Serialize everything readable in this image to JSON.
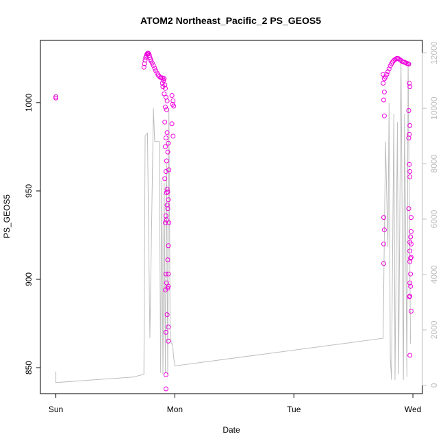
{
  "chart_data": {
    "type": "scatter",
    "title": "ATOM2 Northeast_Pacific_2 PS_GEOS5",
    "xlabel": "Date",
    "ylabel": "PS_GEOS5",
    "x_ticks": [
      {
        "label": "Sun",
        "value": 0
      },
      {
        "label": "Mon",
        "value": 1
      },
      {
        "label": "Tue",
        "value": 2
      },
      {
        "label": "Wed",
        "value": 3
      }
    ],
    "xlim": [
      -0.13,
      3.08
    ],
    "ylim_left": [
      835.3,
      1035.2
    ],
    "yticks_left": [
      850,
      900,
      950,
      1000
    ],
    "ylim_right": [
      -300,
      12450
    ],
    "yticks_right": [
      0,
      2000,
      4000,
      6000,
      8000,
      10000,
      12000
    ],
    "colors": {
      "points": "#ee00dd",
      "altitude_line": "#bdbdbd",
      "right_axis": "#bdbdbd",
      "axis": "#000000"
    },
    "series": [
      {
        "marker": "open-circle",
        "axis": "left",
        "points": [
          [
            0.0,
            1003.3
          ],
          [
            0.0,
            1002.6
          ],
          [
            0.74,
            1020.0
          ],
          [
            0.745,
            1022.0
          ],
          [
            0.75,
            1024.0
          ],
          [
            0.755,
            1025.5
          ],
          [
            0.76,
            1026.5
          ],
          [
            0.765,
            1027.3
          ],
          [
            0.77,
            1027.8
          ],
          [
            0.775,
            1028.0
          ],
          [
            0.78,
            1027.6
          ],
          [
            0.785,
            1026.8
          ],
          [
            0.79,
            1025.6
          ],
          [
            0.795,
            1024.5
          ],
          [
            0.8,
            1023.5
          ],
          [
            0.81,
            1022.3
          ],
          [
            0.82,
            1021.0
          ],
          [
            0.83,
            1019.5
          ],
          [
            0.84,
            1018.0
          ],
          [
            0.85,
            1016.7
          ],
          [
            0.86,
            1015.6
          ],
          [
            0.87,
            1014.8
          ],
          [
            0.88,
            1014.2
          ],
          [
            0.89,
            1014.0
          ],
          [
            0.9,
            1013.8
          ],
          [
            0.91,
            1013.6
          ],
          [
            0.905,
            1012.5
          ],
          [
            0.895,
            1011.0
          ],
          [
            0.915,
            1010.0
          ],
          [
            0.9,
            1009.0
          ],
          [
            0.92,
            1008.0
          ],
          [
            0.91,
            1005.0
          ],
          [
            0.925,
            1003.0
          ],
          [
            0.935,
            1001.0
          ],
          [
            0.92,
            997.5
          ],
          [
            0.93,
            996.0
          ],
          [
            0.915,
            989.0
          ],
          [
            0.935,
            983.0
          ],
          [
            0.925,
            980.0
          ],
          [
            0.945,
            977.0
          ],
          [
            0.92,
            975.0
          ],
          [
            0.94,
            972.0
          ],
          [
            0.93,
            967.0
          ],
          [
            0.925,
            961.0
          ],
          [
            0.95,
            962.0
          ],
          [
            0.915,
            957.0
          ],
          [
            0.935,
            951.0
          ],
          [
            0.93,
            949.0
          ],
          [
            0.94,
            949.5
          ],
          [
            0.945,
            945.0
          ],
          [
            0.935,
            942.0
          ],
          [
            0.94,
            940.0
          ],
          [
            0.925,
            936.0
          ],
          [
            0.92,
            932.0
          ],
          [
            0.93,
            933.5
          ],
          [
            0.95,
            932.0
          ],
          [
            0.945,
            919.0
          ],
          [
            0.94,
            911.0
          ],
          [
            0.925,
            903.0
          ],
          [
            0.945,
            903.0
          ],
          [
            0.93,
            898.0
          ],
          [
            0.94,
            895.0
          ],
          [
            0.945,
            896.0
          ],
          [
            0.92,
            894.0
          ],
          [
            0.935,
            880.0
          ],
          [
            0.945,
            873.0
          ],
          [
            0.925,
            870.0
          ],
          [
            0.945,
            865.0
          ],
          [
            0.925,
            846.0
          ],
          [
            0.925,
            838.0
          ],
          [
            0.975,
            1004.0
          ],
          [
            0.985,
            1001.0
          ],
          [
            0.98,
            999.0
          ],
          [
            0.99,
            998.0
          ],
          [
            0.975,
            988.0
          ],
          [
            0.985,
            981.0
          ],
          [
            2.75,
            1016.0
          ],
          [
            2.76,
            1013.5
          ],
          [
            2.77,
            1014.5
          ],
          [
            2.78,
            1016.0
          ],
          [
            2.79,
            1017.5
          ],
          [
            2.8,
            1019.0
          ],
          [
            2.81,
            1020.8
          ],
          [
            2.82,
            1022.0
          ],
          [
            2.83,
            1023.0
          ],
          [
            2.84,
            1023.8
          ],
          [
            2.85,
            1024.4
          ],
          [
            2.86,
            1024.8
          ],
          [
            2.87,
            1025.0
          ],
          [
            2.88,
            1024.8
          ],
          [
            2.89,
            1024.3
          ],
          [
            2.9,
            1023.8
          ],
          [
            2.91,
            1023.3
          ],
          [
            2.92,
            1023.0
          ],
          [
            2.93,
            1022.8
          ],
          [
            2.94,
            1022.5
          ],
          [
            2.95,
            1022.2
          ],
          [
            2.96,
            1022.0
          ],
          [
            2.965,
            1021.8
          ],
          [
            2.75,
            1011.0
          ],
          [
            2.76,
            1006.0
          ],
          [
            2.755,
            1001.5
          ],
          [
            2.76,
            992.5
          ],
          [
            2.755,
            935.0
          ],
          [
            2.76,
            928.0
          ],
          [
            2.755,
            920.0
          ],
          [
            2.755,
            909.0
          ],
          [
            2.97,
            1011.0
          ],
          [
            2.975,
            1009.0
          ],
          [
            2.965,
            995.5
          ],
          [
            2.975,
            987.0
          ],
          [
            2.97,
            982.0
          ],
          [
            2.965,
            980.0
          ],
          [
            2.97,
            965.0
          ],
          [
            2.975,
            961.0
          ],
          [
            2.975,
            958.0
          ],
          [
            2.965,
            940.0
          ],
          [
            2.985,
            935.0
          ],
          [
            2.985,
            927.0
          ],
          [
            2.98,
            924.0
          ],
          [
            2.975,
            921.0
          ],
          [
            2.985,
            920.0
          ],
          [
            2.975,
            916.0
          ],
          [
            2.98,
            912.0
          ],
          [
            2.985,
            912.5
          ],
          [
            2.975,
            910.0
          ],
          [
            2.98,
            903.0
          ],
          [
            2.975,
            898.0
          ],
          [
            2.98,
            896.0
          ],
          [
            2.97,
            890.0
          ],
          [
            2.975,
            890.5
          ],
          [
            2.985,
            882.0
          ],
          [
            2.975,
            857.0
          ]
        ]
      },
      {
        "marker": "line",
        "axis": "right",
        "points": [
          [
            0.0,
            500
          ],
          [
            0.0,
            100
          ],
          [
            0.65,
            300
          ],
          [
            0.74,
            400
          ],
          [
            0.75,
            9000
          ],
          [
            0.77,
            9100
          ],
          [
            0.79,
            1700
          ],
          [
            0.82,
            10000
          ],
          [
            0.83,
            8800
          ],
          [
            0.87,
            8800
          ],
          [
            0.88,
            450
          ],
          [
            0.89,
            7400
          ],
          [
            0.9,
            400
          ],
          [
            0.91,
            7300
          ],
          [
            0.92,
            450
          ],
          [
            0.93,
            8000
          ],
          [
            0.94,
            400
          ],
          [
            0.95,
            10000
          ],
          [
            0.96,
            2000
          ],
          [
            0.97,
            1500
          ],
          [
            0.98,
            1500
          ],
          [
            0.99,
            1000
          ],
          [
            1.0,
            700
          ],
          [
            2.75,
            1700
          ],
          [
            2.77,
            8800
          ],
          [
            2.79,
            5000
          ],
          [
            2.8,
            10200
          ],
          [
            2.81,
            1000
          ],
          [
            2.82,
            200
          ],
          [
            2.84,
            9800
          ],
          [
            2.85,
            200
          ],
          [
            2.87,
            9500
          ],
          [
            2.88,
            400
          ],
          [
            2.9,
            11700
          ],
          [
            2.92,
            200
          ],
          [
            2.93,
            9800
          ],
          [
            2.95,
            300
          ],
          [
            2.96,
            11700
          ],
          [
            2.98,
            1500
          ]
        ]
      }
    ]
  }
}
